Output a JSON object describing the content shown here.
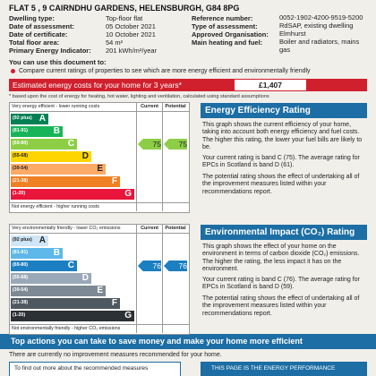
{
  "header": {
    "address": "FLAT 5 , 9 CAIRNDHU GARDENS, HELENSBURGH, G84 8PG"
  },
  "details": {
    "left": [
      {
        "label": "Dwelling type:",
        "value": "Top-floor flat"
      },
      {
        "label": "Date of assessment:",
        "value": "05 October 2021"
      },
      {
        "label": "Date of certificate:",
        "value": "10 October 2021"
      },
      {
        "label": "Total floor area:",
        "value": "54 m²"
      },
      {
        "label": "Primary Energy Indicator:",
        "value": "201 kWh/m²/year"
      }
    ],
    "right": [
      {
        "label": "Reference number:",
        "value": "0052-1902-4200-9519-5200"
      },
      {
        "label": "Type of assessment:",
        "value": "RdSAP, existing dwelling"
      },
      {
        "label": "Approved Organisation:",
        "value": "Elmhurst"
      },
      {
        "label": "Main heating and fuel:",
        "value": "Boiler and radiators, mains gas"
      }
    ]
  },
  "use": {
    "intro": "You can use this document to:",
    "bullet": "Compare current ratings of properties to see which are more energy efficient and environmentally friendly"
  },
  "costs": {
    "label": "Estimated energy costs for your home for 3 years*",
    "value": "£1,407",
    "note": "* based upon the cost of energy for heating, hot water, lighting and ventilation, calculated using standard assumptions"
  },
  "ratings": [
    {
      "top_label": "Very energy efficient - lower running costs",
      "current_header": "Current",
      "potential_header": "Potential",
      "bands": [
        {
          "range": "(92 plus)",
          "letter": "A"
        },
        {
          "range": "(81-91)",
          "letter": "B"
        },
        {
          "range": "(69-80)",
          "letter": "C"
        },
        {
          "range": "(55-68)",
          "letter": "D"
        },
        {
          "range": "(39-54)",
          "letter": "E"
        },
        {
          "range": "(21-38)",
          "letter": "F"
        },
        {
          "range": "(1-20)",
          "letter": "G"
        }
      ],
      "bottom_label": "Not energy efficient - higher running costs",
      "current": 75,
      "potential": 75,
      "title": "Energy Efficiency Rating",
      "paragraphs": [
        "This graph shows the current efficiency of your home, taking into account both energy efficiency and fuel costs. The higher this rating, the lower your fuel bills are likely to be.",
        "Your current rating is band C (75). The average rating for EPCs in Scotland is band D (61).",
        "The potential rating shows the effect of undertaking all of the improvement measures listed within your recommendations report."
      ]
    },
    {
      "top_label": "Very environmentally friendly - lower CO₂ emissions",
      "current_header": "Current",
      "potential_header": "Potential",
      "bands": [
        {
          "range": "(92 plus)",
          "letter": "A"
        },
        {
          "range": "(81-91)",
          "letter": "B"
        },
        {
          "range": "(69-80)",
          "letter": "C"
        },
        {
          "range": "(55-68)",
          "letter": "D"
        },
        {
          "range": "(39-54)",
          "letter": "E"
        },
        {
          "range": "(21-38)",
          "letter": "F"
        },
        {
          "range": "(1-20)",
          "letter": "G"
        }
      ],
      "bottom_label": "Not environmentally friendly - higher CO₂ emissions",
      "current": 76,
      "potential": 76,
      "title": "Environmental Impact (CO₂) Rating",
      "paragraphs": [
        "This graph shows the effect of your home on the environment in terms of carbon dioxide (CO₂) emissions. The higher the rating, the less impact it has on the environment.",
        "Your current rating is band C (76). The average rating for EPCs in Scotland is band D (59).",
        "The potential rating shows the effect of undertaking all of the improvement measures listed within your recommendations report."
      ]
    }
  ],
  "actions": {
    "title": "Top actions you can take to save money and make your home more efficient",
    "text": "There are currently no improvement measures recommended for your home.",
    "box_left": "To find out more about the recommended measures",
    "box_right": "THIS PAGE IS THE ENERGY PERFORMANCE"
  }
}
